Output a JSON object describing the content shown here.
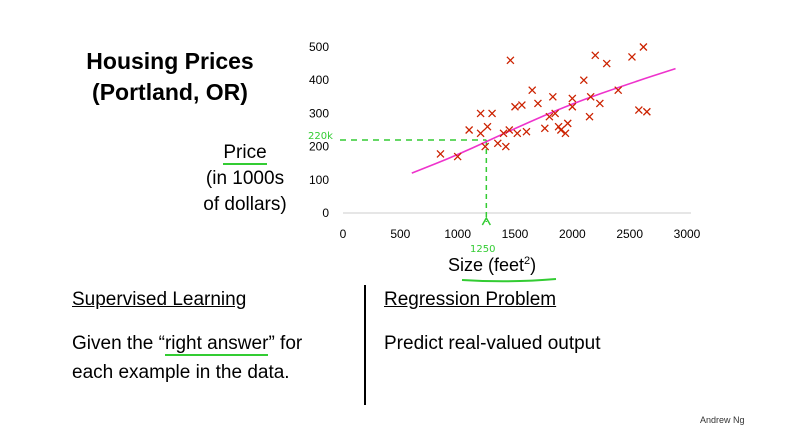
{
  "slide": {
    "title_line1": "Housing Prices",
    "title_line2": "(Portland, OR)",
    "ylabel_line1": "Price",
    "ylabel_line2": "(in 1000s",
    "ylabel_line3": "of dollars)",
    "xlabel": "Size (feet",
    "xlabel_sup": "2",
    "xlabel_end": ")",
    "left_heading": "Supervised Learning",
    "left_desc_line1_a": "Given the “",
    "left_desc_line1_b": "right answer",
    "left_desc_line1_c": "” for",
    "left_desc_line2": "each example in the data.",
    "right_heading": "Regression Problem",
    "right_desc": "Predict real-valued output",
    "credit": "Andrew Ng",
    "annotation_price": "220k",
    "annotation_size": "1250"
  },
  "colors": {
    "points": "#cc2200",
    "fit_line": "#ee33cc",
    "annotation": "#33cc33"
  },
  "chart_data": {
    "type": "scatter",
    "xlim": [
      0,
      3000
    ],
    "ylim": [
      0,
      500
    ],
    "xticks": [
      0,
      500,
      1000,
      1500,
      2000,
      2500,
      3000
    ],
    "yticks": [
      0,
      100,
      200,
      300,
      400,
      500
    ],
    "grid": false,
    "points": [
      [
        850,
        178
      ],
      [
        1000,
        170
      ],
      [
        1100,
        250
      ],
      [
        1200,
        240
      ],
      [
        1200,
        300
      ],
      [
        1240,
        200
      ],
      [
        1260,
        260
      ],
      [
        1300,
        300
      ],
      [
        1350,
        210
      ],
      [
        1400,
        240
      ],
      [
        1420,
        200
      ],
      [
        1450,
        250
      ],
      [
        1460,
        460
      ],
      [
        1500,
        320
      ],
      [
        1520,
        240
      ],
      [
        1560,
        325
      ],
      [
        1600,
        245
      ],
      [
        1650,
        370
      ],
      [
        1700,
        330
      ],
      [
        1760,
        255
      ],
      [
        1800,
        290
      ],
      [
        1830,
        350
      ],
      [
        1850,
        300
      ],
      [
        1880,
        260
      ],
      [
        1900,
        250
      ],
      [
        1940,
        240
      ],
      [
        1960,
        270
      ],
      [
        2000,
        320
      ],
      [
        2000,
        345
      ],
      [
        2100,
        400
      ],
      [
        2150,
        290
      ],
      [
        2160,
        350
      ],
      [
        2200,
        475
      ],
      [
        2240,
        330
      ],
      [
        2300,
        450
      ],
      [
        2400,
        370
      ],
      [
        2520,
        470
      ],
      [
        2580,
        310
      ],
      [
        2620,
        500
      ],
      [
        2650,
        305
      ]
    ],
    "fit_line": [
      [
        600,
        120
      ],
      [
        1000,
        175
      ],
      [
        1500,
        255
      ],
      [
        2000,
        330
      ],
      [
        2500,
        390
      ],
      [
        2900,
        435
      ]
    ],
    "guide": {
      "x": 1250,
      "y": 220
    }
  }
}
